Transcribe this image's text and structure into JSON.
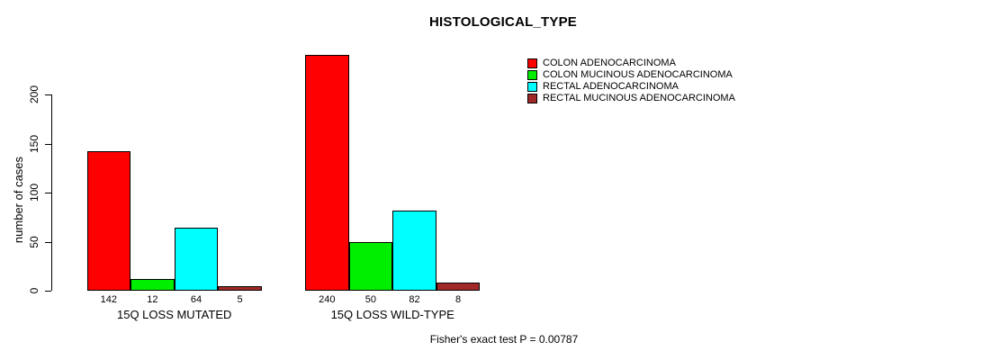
{
  "chart_data": {
    "type": "bar",
    "title": "HISTOLOGICAL_TYPE",
    "ylabel": "number of cases",
    "xlabel": "",
    "categories": [
      "15Q LOSS MUTATED",
      "15Q LOSS WILD-TYPE"
    ],
    "series": [
      {
        "name": "COLON ADENOCARCINOMA",
        "color": "#ff0000",
        "values": [
          142,
          240
        ]
      },
      {
        "name": "COLON MUCINOUS ADENOCARCINOMA",
        "color": "#00ee00",
        "values": [
          12,
          50
        ]
      },
      {
        "name": "RECTAL ADENOCARCINOMA",
        "color": "#00ffff",
        "values": [
          64,
          82
        ]
      },
      {
        "name": "RECTAL MUCINOUS ADENOCARCINOMA",
        "color": "#a02828",
        "values": [
          5,
          8
        ]
      }
    ],
    "yticks": [
      0,
      50,
      100,
      150,
      200
    ],
    "ylim": [
      0,
      200
    ],
    "grid": false,
    "bar_value_labels": true,
    "legend_position": "top-right",
    "annotation": "Fisher's exact test P = 0.00787"
  }
}
